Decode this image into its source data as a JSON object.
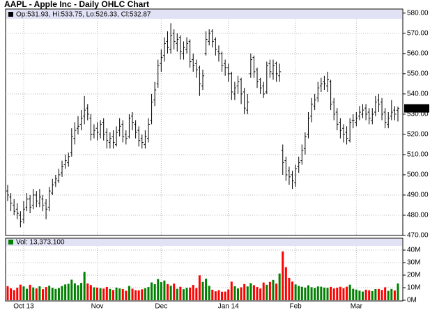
{
  "chart_data": {
    "type": "ohlc",
    "title": "AAPL - Apple Inc - Daily OHLC Chart",
    "ohlc_label": "Op:531.93, Hi:533.75, Lo:526.33, Cl:532.87",
    "color": "#000000",
    "grid": true,
    "categories": [
      null,
      null,
      null,
      null,
      null,
      "Oct 13",
      null,
      null,
      null,
      null,
      null,
      null,
      null,
      null,
      null,
      null,
      null,
      null,
      null,
      null,
      null,
      null,
      null,
      null,
      null,
      null,
      null,
      null,
      "Nov",
      null,
      null,
      null,
      null,
      null,
      null,
      null,
      null,
      null,
      null,
      null,
      null,
      null,
      null,
      null,
      null,
      null,
      null,
      null,
      "Dec",
      null,
      null,
      null,
      null,
      null,
      null,
      null,
      null,
      null,
      null,
      null,
      null,
      null,
      null,
      null,
      null,
      null,
      null,
      null,
      null,
      "Jan 14",
      null,
      null,
      null,
      null,
      null,
      null,
      null,
      null,
      null,
      null,
      null,
      null,
      null,
      null,
      null,
      null,
      null,
      null,
      null,
      null,
      "Feb",
      null,
      null,
      null,
      null,
      null,
      null,
      null,
      null,
      null,
      null,
      null,
      null,
      null,
      null,
      null,
      null,
      null,
      null,
      "Mar",
      null,
      null,
      null,
      null,
      null,
      null,
      null,
      null,
      null,
      null,
      null,
      null,
      null
    ],
    "open": [
      492,
      489,
      485,
      483,
      480,
      478,
      484,
      488,
      485,
      490,
      486,
      488,
      486,
      484,
      491,
      496,
      497,
      501,
      505,
      506,
      511,
      518,
      523,
      525,
      529,
      533,
      528,
      520,
      523,
      520,
      526,
      521,
      516,
      519,
      515,
      522,
      525,
      520,
      519,
      529,
      525,
      522,
      518,
      515,
      518,
      527,
      537,
      545,
      555,
      559,
      566,
      562,
      570,
      565,
      568,
      560,
      562,
      566,
      557,
      555,
      553,
      544,
      560,
      566,
      571,
      567,
      561,
      560,
      555,
      553,
      550,
      540,
      544,
      547,
      541,
      532,
      550,
      558,
      552,
      547,
      544,
      541,
      555,
      550,
      555,
      549,
      512,
      507,
      502,
      500,
      496,
      504,
      507,
      513,
      520,
      529,
      534,
      538,
      544,
      546,
      544,
      546,
      536,
      531,
      526,
      523,
      521,
      517,
      527,
      526,
      529,
      530,
      533,
      531,
      527,
      531,
      537,
      536,
      531,
      525,
      529,
      532,
      531.93
    ],
    "high": [
      495,
      491,
      488,
      486,
      482,
      487,
      491,
      490,
      493,
      492,
      493,
      490,
      488,
      494,
      498,
      500,
      503,
      507,
      510,
      511,
      523,
      526,
      529,
      532,
      539,
      535,
      530,
      525,
      526,
      527,
      528,
      523,
      521,
      522,
      524,
      528,
      527,
      522,
      530,
      531,
      527,
      524,
      520,
      522,
      528,
      540,
      546,
      557,
      562,
      568,
      571,
      575,
      572,
      570,
      569,
      566,
      568,
      567,
      560,
      557,
      554,
      552,
      571,
      572,
      572,
      568,
      564,
      561,
      557,
      555,
      551,
      546,
      549,
      548,
      543,
      540,
      560,
      559,
      553,
      548,
      546,
      556,
      557,
      557,
      556,
      555,
      515,
      509,
      504,
      502,
      505,
      509,
      515,
      521,
      531,
      538,
      540,
      546,
      548,
      549,
      551,
      547,
      538,
      533,
      528,
      525,
      524,
      528,
      530,
      531,
      534,
      535,
      535,
      533,
      533,
      539,
      540,
      538,
      533,
      531,
      537,
      534,
      533.75
    ],
    "low": [
      487,
      482,
      480,
      478,
      474,
      476,
      482,
      481,
      483,
      484,
      484,
      482,
      478,
      482,
      490,
      494,
      496,
      499,
      503,
      504,
      509,
      515,
      520,
      522,
      525,
      527,
      517,
      518,
      517,
      518,
      517,
      513,
      513,
      513,
      514,
      519,
      516,
      515,
      518,
      522,
      518,
      514,
      513,
      513,
      516,
      525,
      534,
      543,
      551,
      556,
      560,
      560,
      562,
      561,
      557,
      557,
      560,
      553,
      551,
      548,
      539,
      542,
      559,
      564,
      563,
      559,
      556,
      551,
      549,
      546,
      537,
      537,
      540,
      535,
      530,
      530,
      548,
      548,
      543,
      540,
      538,
      540,
      548,
      547,
      546,
      546,
      500,
      497,
      495,
      493,
      494,
      501,
      505,
      510,
      518,
      526,
      532,
      536,
      541,
      542,
      541,
      532,
      527,
      522,
      518,
      516,
      515,
      516,
      523,
      524,
      527,
      528,
      527,
      525,
      525,
      529,
      531,
      527,
      523,
      523,
      527,
      527,
      526.33
    ],
    "close": [
      490,
      486,
      482,
      481,
      477,
      483,
      488,
      484,
      490,
      487,
      489,
      485,
      483,
      492,
      495,
      498,
      500,
      504,
      507,
      509,
      519,
      522,
      524,
      528,
      532,
      530,
      520,
      522,
      521,
      525,
      520,
      517,
      518,
      516,
      521,
      524,
      519,
      518,
      528,
      526,
      521,
      517,
      516,
      519,
      525,
      536,
      542,
      554,
      558,
      565,
      563,
      569,
      566,
      567,
      561,
      563,
      565,
      556,
      554,
      552,
      545,
      549,
      567,
      570,
      566,
      562,
      560,
      554,
      553,
      550,
      541,
      543,
      546,
      540,
      533,
      536,
      557,
      551,
      546,
      543,
      540,
      554,
      551,
      554,
      550,
      551,
      506,
      500,
      499,
      497,
      503,
      506,
      512,
      519,
      528,
      535,
      537,
      543,
      545,
      545,
      547,
      535,
      530,
      525,
      522,
      520,
      518,
      526,
      527,
      528,
      531,
      532,
      530,
      528,
      530,
      536,
      535,
      530,
      526,
      528,
      531,
      530,
      532.87
    ],
    "ylim": [
      470,
      582
    ],
    "yticks": [
      {
        "value": 580,
        "label": "580.00"
      },
      {
        "value": 570,
        "label": "570.00"
      },
      {
        "value": 560,
        "label": "560.00"
      },
      {
        "value": 550,
        "label": "550.00"
      },
      {
        "value": 540,
        "label": "540.00"
      },
      {
        "value": 530,
        "label": "530.00"
      },
      {
        "value": 520,
        "label": "520.00"
      },
      {
        "value": 510,
        "label": "510.00"
      },
      {
        "value": 500,
        "label": "500.00"
      },
      {
        "value": 490,
        "label": "490.00"
      },
      {
        "value": 480,
        "label": "480.00"
      },
      {
        "value": 470,
        "label": "470.00"
      }
    ],
    "volume": {
      "type": "bar",
      "label": "Vol: 13,373,100",
      "up_color": "#008000",
      "down_color": "#ff0000",
      "values": [
        11200000,
        9500000,
        8100000,
        9900000,
        12400000,
        11000000,
        9100000,
        12300000,
        10200000,
        9400000,
        11100000,
        8800000,
        10500000,
        11600000,
        9900000,
        9000000,
        9700000,
        11300000,
        12600000,
        13100000,
        16400000,
        13500000,
        12000000,
        13800000,
        22600000,
        13400000,
        12100000,
        10300000,
        10100000,
        9600000,
        9300000,
        10600000,
        9000000,
        8200000,
        10100000,
        9400000,
        8900000,
        7500000,
        11400000,
        9200000,
        8000000,
        7900000,
        8700000,
        9600000,
        10500000,
        14200000,
        12800000,
        16900000,
        14400000,
        15700000,
        12900000,
        11600000,
        13300000,
        9100000,
        10700000,
        8800000,
        9900000,
        10100000,
        12200000,
        9700000,
        19800000,
        14600000,
        17200000,
        11500000,
        8400000,
        7100000,
        8000000,
        6800000,
        6900000,
        8600000,
        14800000,
        11200000,
        9400000,
        10300000,
        12900000,
        11000000,
        13600000,
        12000000,
        10500000,
        9300000,
        14100000,
        12300000,
        14600000,
        16200000,
        13300000,
        21300000,
        38900000,
        26400000,
        17800000,
        14900000,
        12600000,
        11400000,
        10700000,
        10100000,
        11900000,
        10400000,
        9800000,
        11000000,
        10800000,
        10100000,
        9900000,
        10600000,
        9400000,
        10000000,
        10700000,
        9600000,
        10800000,
        12400000,
        9100000,
        8500000,
        7600000,
        6900000,
        8400000,
        7900000,
        7300000,
        8900000,
        9000000,
        8200000,
        10300000,
        7500000,
        9000000,
        7800000,
        13373100
      ],
      "ylim": [
        0,
        45000000
      ],
      "yticks": [
        {
          "value": 40000000,
          "label": "40M"
        },
        {
          "value": 30000000,
          "label": "30M"
        },
        {
          "value": 20000000,
          "label": "20M"
        },
        {
          "value": 10000000,
          "label": "10M"
        },
        {
          "value": 0,
          "label": "0M"
        }
      ]
    }
  }
}
